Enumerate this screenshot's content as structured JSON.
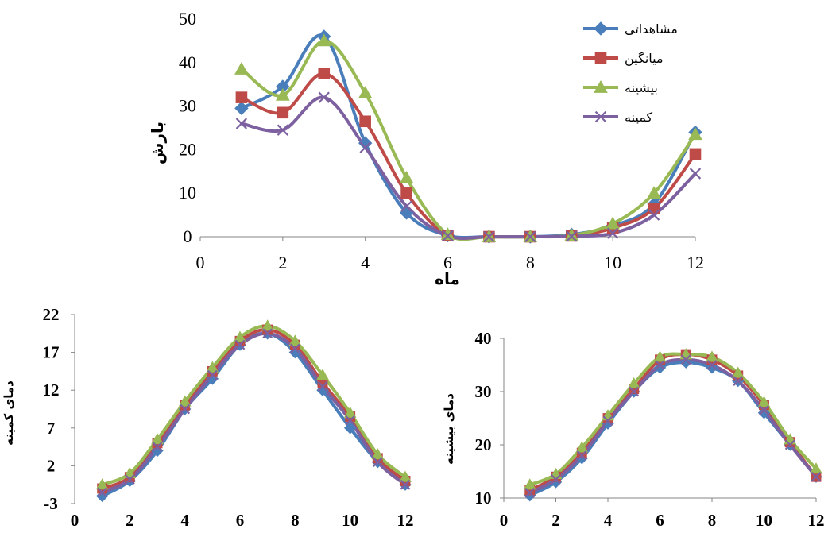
{
  "colors": {
    "observed": "#4a7ebb",
    "mean": "#be4b48",
    "max": "#98b954",
    "min": "#7d60a0",
    "axis": "#868686"
  },
  "chart_data": [
    {
      "id": "precip",
      "type": "line",
      "title": "",
      "xlabel": "ماه",
      "ylabel": "بارش",
      "xlim": [
        0,
        12
      ],
      "ylim": [
        0,
        50
      ],
      "xticks": [
        0,
        2,
        4,
        6,
        8,
        10,
        12
      ],
      "yticks": [
        0,
        10,
        20,
        30,
        40,
        50
      ],
      "legend": "top-right",
      "x": [
        1,
        2,
        3,
        4,
        5,
        6,
        7,
        8,
        9,
        10,
        11,
        12
      ],
      "series": [
        {
          "key": "observed",
          "name": "مشاهداتی",
          "marker": "diamond",
          "values": [
            29.5,
            34.5,
            46.0,
            21.5,
            5.5,
            0.3,
            0,
            0,
            0.5,
            2.5,
            7.5,
            24.0
          ]
        },
        {
          "key": "mean",
          "name": "میانگین",
          "marker": "square",
          "values": [
            32.0,
            28.5,
            37.5,
            26.5,
            10.0,
            0.3,
            0,
            0,
            0.2,
            2.0,
            6.5,
            19.0
          ]
        },
        {
          "key": "max",
          "name": "بیشینه",
          "marker": "triangle",
          "values": [
            38.5,
            32.5,
            45.0,
            33.0,
            13.5,
            0.5,
            0,
            0,
            0.3,
            3.0,
            10.0,
            23.5
          ]
        },
        {
          "key": "min",
          "name": "کمینه",
          "marker": "x",
          "values": [
            26.0,
            24.5,
            32.0,
            20.5,
            7.0,
            0.2,
            0,
            0,
            0.1,
            0.8,
            5.0,
            14.5
          ]
        }
      ]
    },
    {
      "id": "tmin",
      "type": "line",
      "title": "",
      "xlabel": "",
      "ylabel": "دمای کمینه",
      "xlim": [
        0,
        12
      ],
      "ylim": [
        -3,
        22
      ],
      "xticks": [
        0,
        2,
        4,
        6,
        8,
        10,
        12
      ],
      "yticks": [
        -3,
        2,
        7,
        12,
        17,
        22
      ],
      "x": [
        1,
        2,
        3,
        4,
        5,
        6,
        7,
        8,
        9,
        10,
        11,
        12
      ],
      "series": [
        {
          "key": "observed",
          "name": "مشاهداتی",
          "marker": "diamond",
          "values": [
            -2.0,
            0.0,
            4.0,
            9.5,
            13.5,
            18.0,
            19.5,
            17.0,
            12.0,
            7.0,
            2.5,
            -0.5
          ]
        },
        {
          "key": "mean",
          "name": "میانگین",
          "marker": "square",
          "values": [
            -1.0,
            0.5,
            5.0,
            10.0,
            14.5,
            18.5,
            20.0,
            18.0,
            13.0,
            8.5,
            3.0,
            0.0
          ]
        },
        {
          "key": "max",
          "name": "بیشینه",
          "marker": "triangle",
          "values": [
            -0.5,
            1.0,
            5.5,
            10.5,
            15.0,
            19.0,
            20.5,
            18.5,
            14.0,
            9.0,
            3.5,
            0.5
          ]
        },
        {
          "key": "min",
          "name": "کمینه",
          "marker": "x",
          "values": [
            -1.5,
            0.2,
            4.5,
            9.5,
            14.0,
            18.0,
            19.5,
            17.5,
            12.5,
            8.0,
            2.5,
            -0.5
          ]
        }
      ]
    },
    {
      "id": "tmax",
      "type": "line",
      "title": "",
      "xlabel": "",
      "ylabel": "دمای بیشینه",
      "xlim": [
        0,
        12
      ],
      "ylim": [
        10,
        40
      ],
      "xticks": [
        0,
        2,
        4,
        6,
        8,
        10,
        12
      ],
      "yticks": [
        10,
        20,
        30,
        40
      ],
      "x": [
        1,
        2,
        3,
        4,
        5,
        6,
        7,
        8,
        9,
        10,
        11,
        12
      ],
      "series": [
        {
          "key": "observed",
          "name": "مشاهداتی",
          "marker": "diamond",
          "values": [
            10.5,
            13.0,
            17.5,
            24.0,
            30.0,
            34.5,
            35.5,
            34.5,
            32.0,
            26.0,
            20.0,
            14.0
          ]
        },
        {
          "key": "mean",
          "name": "میانگین",
          "marker": "square",
          "values": [
            11.5,
            14.0,
            18.5,
            25.0,
            30.5,
            36.0,
            37.0,
            36.0,
            33.0,
            27.5,
            20.5,
            14.0
          ]
        },
        {
          "key": "max",
          "name": "بیشینه",
          "marker": "triangle",
          "values": [
            12.5,
            14.5,
            19.5,
            25.5,
            31.5,
            36.5,
            37.0,
            36.5,
            33.5,
            28.0,
            21.0,
            15.5
          ]
        },
        {
          "key": "min",
          "name": "کمینه",
          "marker": "x",
          "values": [
            11.0,
            13.5,
            18.0,
            24.5,
            30.0,
            35.0,
            36.0,
            35.0,
            32.0,
            26.5,
            20.0,
            14.0
          ]
        }
      ]
    }
  ]
}
